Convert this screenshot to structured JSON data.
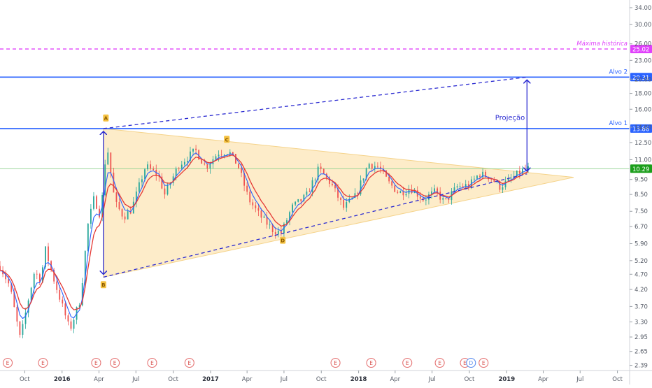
{
  "colors": {
    "candle_up": "#26a69a",
    "candle_down": "#ef5350",
    "ma_fast": "#2962ff",
    "ma_slow": "#e53935",
    "triangle_fill": "#fde9bf",
    "level_line": "#2962ff",
    "historic_line": "#e040fb",
    "current_price": "#1b9e1b",
    "projection": "#2b2bd1",
    "marker_yellow": "#f5c242",
    "earnings_red": "#e57373",
    "dividend_blue": "#5b8def"
  },
  "chart_data": {
    "type": "candlestick",
    "scale": "log",
    "y_range": [
      2.3,
      36
    ],
    "y_ticks": [
      "34.00",
      "30.00",
      "26.00",
      "23.00",
      "20.00",
      "18.00",
      "16.00",
      "14.00",
      "12.50",
      "11.00",
      "9.50",
      "8.50",
      "7.50",
      "6.70",
      "5.90",
      "5.20",
      "4.70",
      "4.20",
      "3.70",
      "3.30",
      "2.95",
      "2.65",
      "2.39"
    ],
    "x_range": [
      "2015-08-01",
      "2019-10-31"
    ],
    "x_ticks": [
      "Oct",
      "2016",
      "Apr",
      "Jul",
      "Oct",
      "2017",
      "Apr",
      "Jul",
      "Oct",
      "2018",
      "Apr",
      "Jul",
      "Oct",
      "2019",
      "Apr",
      "Jul",
      "Oct"
    ],
    "levels": [
      {
        "label": "Máxima histórica",
        "value": 25.02,
        "style": "dashed"
      },
      {
        "label": "Alvo 2",
        "value": 20.31,
        "style": "solid"
      },
      {
        "label": "Alvo 1",
        "value": 13.86,
        "style": "solid"
      }
    ],
    "current_price": "10.29",
    "price_path": [
      {
        "x": "2015-08-01",
        "y": 5.0
      },
      {
        "x": "2015-08-25",
        "y": 4.3
      },
      {
        "x": "2015-09-20",
        "y": 2.9
      },
      {
        "x": "2015-10-10",
        "y": 3.9
      },
      {
        "x": "2015-10-25",
        "y": 4.8
      },
      {
        "x": "2015-11-10",
        "y": 4.5
      },
      {
        "x": "2015-11-20",
        "y": 5.7
      },
      {
        "x": "2015-12-10",
        "y": 4.6
      },
      {
        "x": "2016-01-05",
        "y": 3.6
      },
      {
        "x": "2016-01-20",
        "y": 3.1
      },
      {
        "x": "2016-02-15",
        "y": 3.9
      },
      {
        "x": "2016-03-05",
        "y": 6.8
      },
      {
        "x": "2016-03-20",
        "y": 8.3
      },
      {
        "x": "2016-04-05",
        "y": 7.2
      },
      {
        "x": "2016-04-20",
        "y": 12.5
      },
      {
        "x": "2016-05-10",
        "y": 8.0
      },
      {
        "x": "2016-06-01",
        "y": 7.2
      },
      {
        "x": "2016-06-20",
        "y": 7.6
      },
      {
        "x": "2016-07-25",
        "y": 10.5
      },
      {
        "x": "2016-08-25",
        "y": 9.8
      },
      {
        "x": "2016-09-10",
        "y": 8.5
      },
      {
        "x": "2016-10-15",
        "y": 10.6
      },
      {
        "x": "2016-11-25",
        "y": 11.8
      },
      {
        "x": "2016-12-20",
        "y": 10.4
      },
      {
        "x": "2017-01-20",
        "y": 11.6
      },
      {
        "x": "2017-02-15",
        "y": 11.7
      },
      {
        "x": "2017-03-10",
        "y": 10.5
      },
      {
        "x": "2017-04-05",
        "y": 8.2
      },
      {
        "x": "2017-05-01",
        "y": 7.3
      },
      {
        "x": "2017-06-05",
        "y": 6.5
      },
      {
        "x": "2017-06-25",
        "y": 6.4
      },
      {
        "x": "2017-07-20",
        "y": 7.7
      },
      {
        "x": "2017-08-25",
        "y": 8.4
      },
      {
        "x": "2017-09-25",
        "y": 10.3
      },
      {
        "x": "2017-10-25",
        "y": 9.2
      },
      {
        "x": "2017-11-25",
        "y": 7.7
      },
      {
        "x": "2017-12-25",
        "y": 8.4
      },
      {
        "x": "2018-01-25",
        "y": 10.7
      },
      {
        "x": "2018-02-20",
        "y": 10.4
      },
      {
        "x": "2018-03-15",
        "y": 9.3
      },
      {
        "x": "2018-04-10",
        "y": 8.6
      },
      {
        "x": "2018-05-10",
        "y": 8.9
      },
      {
        "x": "2018-06-10",
        "y": 8.2
      },
      {
        "x": "2018-07-10",
        "y": 8.7
      },
      {
        "x": "2018-08-01",
        "y": 8.0
      },
      {
        "x": "2018-09-01",
        "y": 9.0
      },
      {
        "x": "2018-10-01",
        "y": 9.1
      },
      {
        "x": "2018-10-25",
        "y": 9.9
      },
      {
        "x": "2018-11-20",
        "y": 9.7
      },
      {
        "x": "2018-12-15",
        "y": 9.0
      },
      {
        "x": "2019-01-15",
        "y": 9.6
      },
      {
        "x": "2019-02-05",
        "y": 10.1
      },
      {
        "x": "2019-02-25",
        "y": 10.3
      }
    ],
    "triangle": {
      "top_start": {
        "x": "2016-04-12",
        "y": 13.86
      },
      "bottom_start": {
        "x": "2016-04-12",
        "y": 4.6
      },
      "apex": {
        "x": "2019-06-15",
        "y": 9.65
      }
    },
    "projection": {
      "label": "Projeção",
      "pattern_height_from": 4.6,
      "pattern_height_to": 13.86,
      "target_from": 9.9,
      "target_to": 20.31,
      "breakout_date": "2019-02-20"
    },
    "swing_markers": [
      {
        "label": "A",
        "date": "2016-04-18",
        "value": 15.0
      },
      {
        "label": "B",
        "date": "2016-04-12",
        "value": 4.35
      },
      {
        "label": "C",
        "date": "2017-02-10",
        "value": 12.8
      },
      {
        "label": "D",
        "date": "2017-06-28",
        "value": 6.05
      }
    ],
    "event_markers": [
      {
        "label": "E",
        "date": "2015-08-20"
      },
      {
        "label": "E",
        "date": "2015-11-15"
      },
      {
        "label": "E",
        "date": "2016-03-25"
      },
      {
        "label": "E",
        "date": "2016-05-10"
      },
      {
        "label": "E",
        "date": "2016-08-10"
      },
      {
        "label": "E",
        "date": "2016-11-10"
      },
      {
        "label": "E",
        "date": "2017-11-05"
      },
      {
        "label": "E",
        "date": "2018-02-01"
      },
      {
        "label": "E",
        "date": "2018-05-01"
      },
      {
        "label": "E",
        "date": "2018-07-20"
      },
      {
        "label": "E",
        "date": "2018-09-20"
      },
      {
        "label": "D",
        "date": "2018-10-05"
      },
      {
        "label": "E",
        "date": "2018-11-05"
      }
    ]
  }
}
